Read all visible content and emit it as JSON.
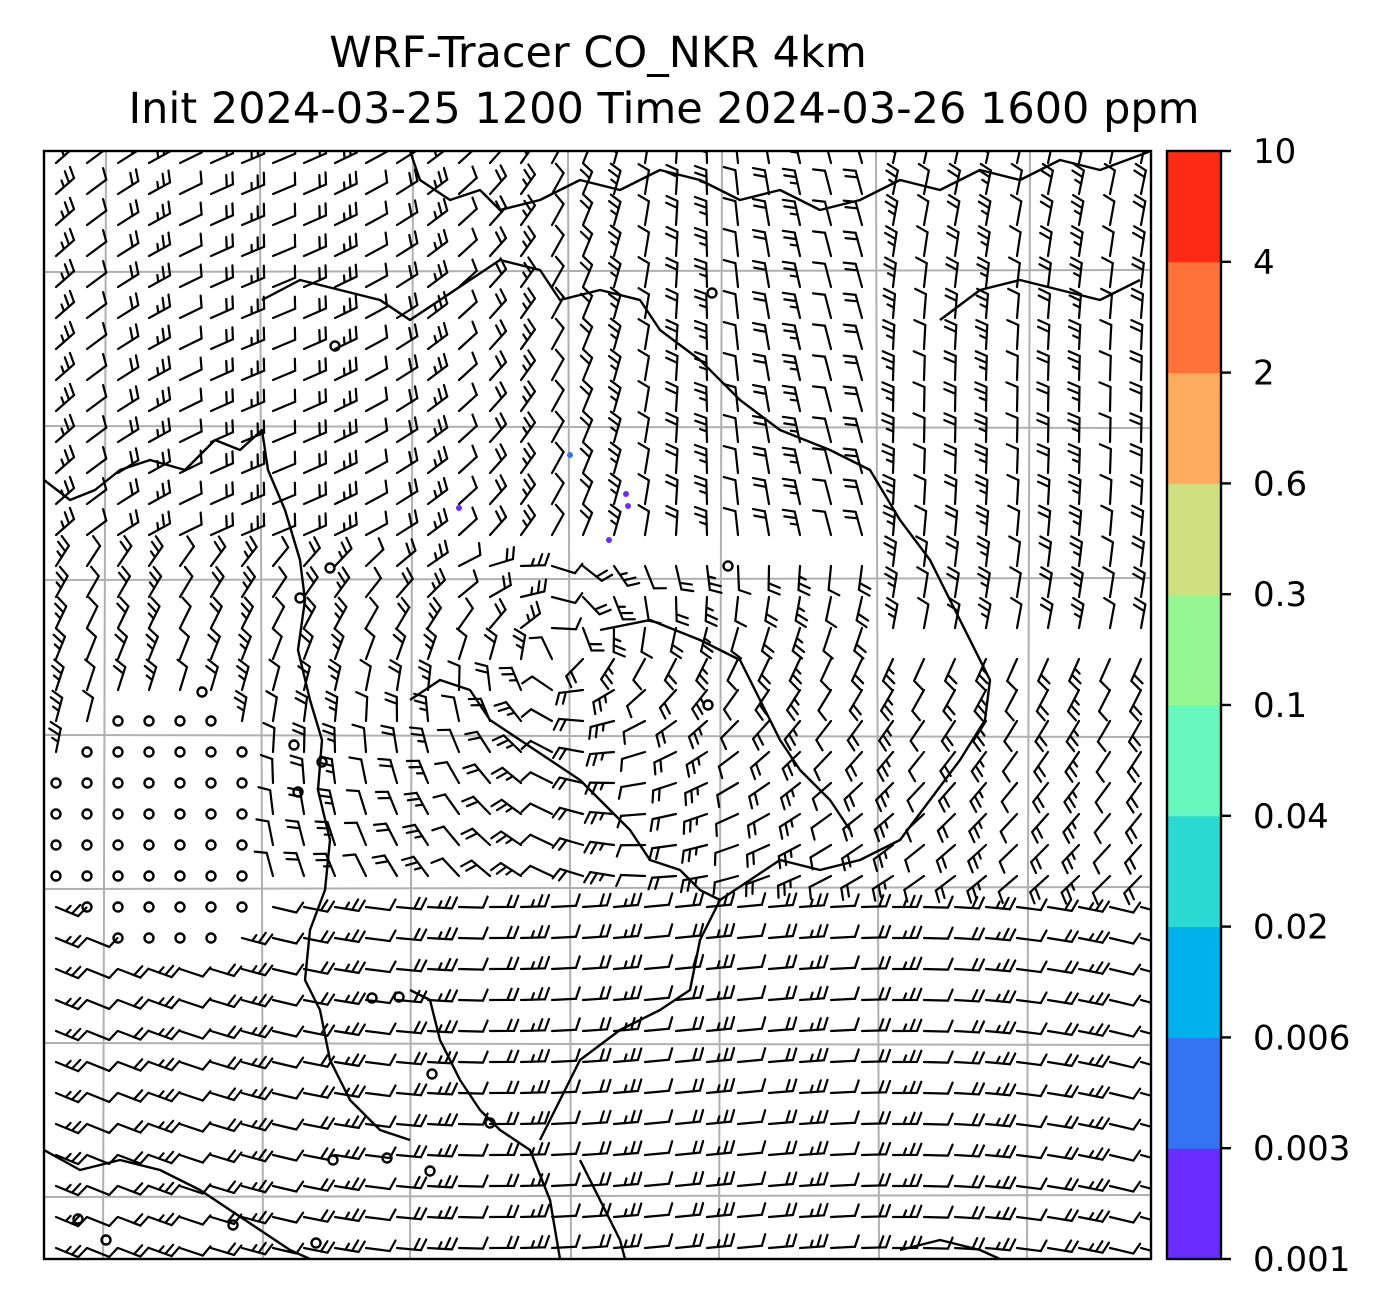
{
  "title": {
    "line1": "WRF-Tracer CO_NKR 4km",
    "line2": "Init 2024-03-25 1200 Time 2024-03-26 1600 ppm"
  },
  "colorbar": {
    "ticks": [
      "0.001",
      "0.003",
      "0.006",
      "0.02",
      "0.04",
      "0.1",
      "0.3",
      "0.6",
      "2",
      "4",
      "10"
    ],
    "colors": [
      "#6a2cff",
      "#3473f2",
      "#00b1eb",
      "#2ad9d2",
      "#66f8bd",
      "#94f791",
      "#cfdf80",
      "#ffac5e",
      "#ff7338",
      "#ff2a14"
    ]
  },
  "map": {
    "gridlines": true,
    "tracer_blips": [
      {
        "shade": "#6a2cff"
      },
      {
        "shade": "#6a2cff"
      },
      {
        "shade": "#6a2cff"
      },
      {
        "shade": "#6a2cff"
      },
      {
        "shade": "#3473f2"
      }
    ]
  }
}
